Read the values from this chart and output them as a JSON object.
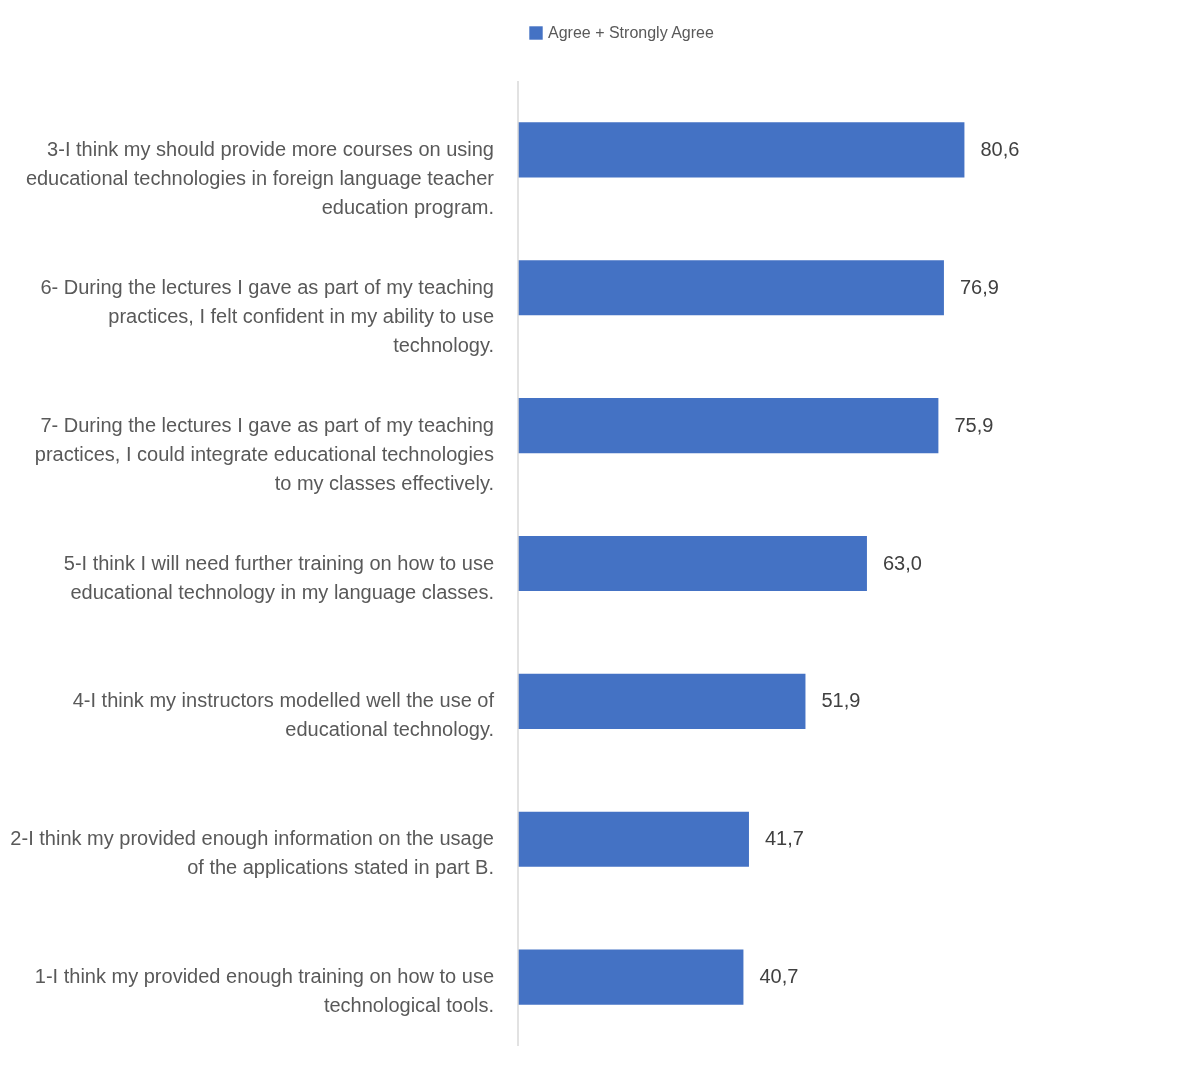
{
  "chart_data": {
    "type": "bar",
    "orientation": "horizontal",
    "legend": "top",
    "categories": [
      "3-I think my should provide more courses on using educational technologies in foreign language teacher education program.",
      "6- During the lectures I gave as part of my teaching practices, I felt confident in my ability to use technology.",
      "7- During the lectures I gave as part of my teaching practices, I could integrate educational technologies to my classes effectively.",
      "5-I think I will need further training on how to use educational technology in my language classes.",
      "4-I think my instructors modelled well the  use of educational technology.",
      "2-I think my provided enough information on the usage of the applications stated in part B.",
      "1-I think my provided enough training on how to use technological tools."
    ],
    "series": [
      {
        "name": "Agree + Strongly Agree",
        "color": "#4472c4",
        "values": [
          80.6,
          76.9,
          75.9,
          63.0,
          51.9,
          41.7,
          40.7
        ],
        "value_labels": [
          "80,6",
          "76,9",
          "75,9",
          "63,0",
          "51,9",
          "41,7",
          "40,7"
        ]
      }
    ]
  }
}
